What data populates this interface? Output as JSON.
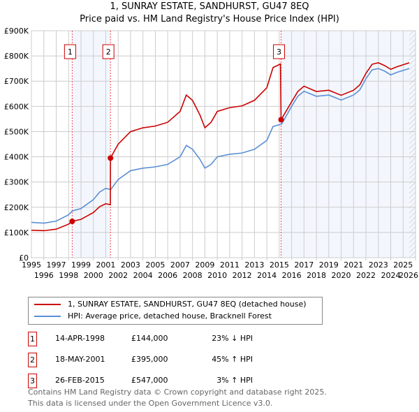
{
  "chart_data": {
    "type": "line",
    "title": "1, SUNRAY ESTATE, SANDHURST, GU47 8EQ",
    "subtitle": "Price paid vs. HM Land Registry's House Price Index (HPI)",
    "xlim": [
      1995,
      2026
    ],
    "ylim": [
      0,
      900000
    ],
    "x_ticks": [
      "1995",
      "1996",
      "1997",
      "1998",
      "1999",
      "2000",
      "2001",
      "2002",
      "2003",
      "2004",
      "2005",
      "2006",
      "2007",
      "2008",
      "2009",
      "2010",
      "2011",
      "2012",
      "2013",
      "2014",
      "2015",
      "2016",
      "2017",
      "2018",
      "2019",
      "2020",
      "2021",
      "2022",
      "2023",
      "2024",
      "2025",
      "2026"
    ],
    "y_ticks": [
      {
        "v": 0,
        "label": "£0"
      },
      {
        "v": 100000,
        "label": "£100K"
      },
      {
        "v": 200000,
        "label": "£200K"
      },
      {
        "v": 300000,
        "label": "£300K"
      },
      {
        "v": 400000,
        "label": "£400K"
      },
      {
        "v": 500000,
        "label": "£500K"
      },
      {
        "v": 600000,
        "label": "£600K"
      },
      {
        "v": 700000,
        "label": "£700K"
      },
      {
        "v": 800000,
        "label": "£800K"
      },
      {
        "v": 900000,
        "label": "£900K"
      }
    ],
    "grid": true,
    "series": [
      {
        "name": "1, SUNRAY ESTATE, SANDHURST, GU47 8EQ (detached house)",
        "color": "#cc0000",
        "x": [
          1995,
          1996,
          1997,
          1998,
          1998.29,
          1999,
          2000,
          2000.5,
          2001,
          2001.37,
          2001.38,
          2002,
          2003,
          2004,
          2005,
          2006,
          2007,
          2007.5,
          2008,
          2008.6,
          2009,
          2009.5,
          2010,
          2011,
          2012,
          2013,
          2014,
          2014.5,
          2015.1,
          2015.15,
          2016,
          2016.5,
          2017,
          2018,
          2019,
          2020,
          2021,
          2021.5,
          2022,
          2022.5,
          2023,
          2023.5,
          2024,
          2024.5,
          2025.5
        ],
        "y": [
          109000,
          107000,
          113000,
          133000,
          144000,
          152000,
          179000,
          202000,
          214000,
          210000,
          395000,
          450000,
          500000,
          515000,
          522000,
          537000,
          580000,
          645000,
          624000,
          566000,
          515000,
          537000,
          580000,
          595000,
          602000,
          624000,
          674000,
          754000,
          768000,
          547000,
          618000,
          659000,
          680000,
          659000,
          664000,
          644000,
          664000,
          685000,
          731000,
          767000,
          773000,
          762000,
          747000,
          757000,
          773000
        ]
      },
      {
        "name": "HPI: Average price, detached house, Bracknell Forest",
        "color": "#5b8fd4",
        "x": [
          1995,
          1996,
          1997,
          1998,
          1998.29,
          1999,
          2000,
          2000.5,
          2001,
          2001.4,
          2002,
          2003,
          2004,
          2005,
          2006,
          2007,
          2007.5,
          2008,
          2008.6,
          2009,
          2009.5,
          2010,
          2011,
          2012,
          2013,
          2014,
          2014.5,
          2015.2,
          2016,
          2016.5,
          2017,
          2018,
          2019,
          2020,
          2021,
          2021.5,
          2022,
          2022.5,
          2023,
          2023.5,
          2024,
          2024.5,
          2025.5
        ],
        "y": [
          140000,
          137000,
          145000,
          170000,
          185000,
          195000,
          230000,
          260000,
          275000,
          270000,
          310000,
          345000,
          355000,
          360000,
          370000,
          400000,
          445000,
          430000,
          390000,
          355000,
          370000,
          400000,
          410000,
          415000,
          430000,
          465000,
          520000,
          530000,
          600000,
          640000,
          660000,
          640000,
          645000,
          625000,
          645000,
          665000,
          710000,
          745000,
          750000,
          740000,
          725000,
          735000,
          750000
        ]
      }
    ],
    "sales": [
      {
        "id": "1",
        "x": 1998.29,
        "y": 144000,
        "date": "14-APR-1998",
        "price": "£144,000",
        "delta": "23% ↓ HPI"
      },
      {
        "id": "2",
        "x": 2001.38,
        "y": 395000,
        "date": "18-MAY-2001",
        "price": "£395,000",
        "delta": "45% ↑ HPI"
      },
      {
        "id": "3",
        "x": 2015.15,
        "y": 547000,
        "date": "26-FEB-2015",
        "price": "£547,000",
        "delta": "3% ↑ HPI"
      }
    ],
    "forecast_start": 2025.5
  },
  "footer": {
    "line1": "Contains HM Land Registry data © Crown copyright and database right 2025.",
    "line2": "This data is licensed under the Open Government Licence v3.0."
  }
}
